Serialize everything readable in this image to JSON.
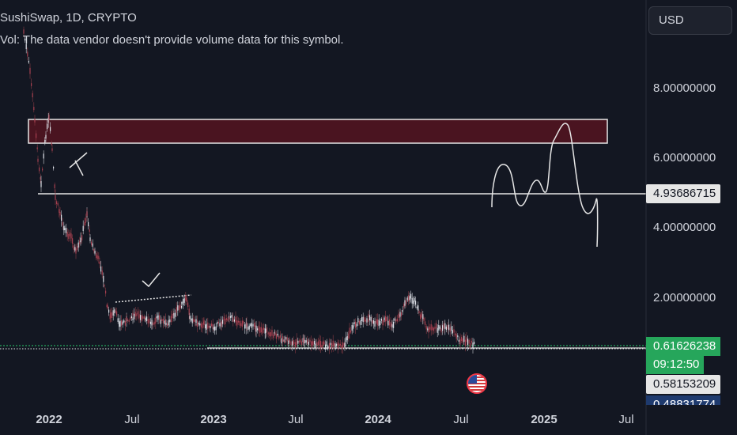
{
  "header": {
    "symbol_line": "SushiSwap, 1D, CRYPTO",
    "volume_note": "Vol: The data vendor doesn't provide volume data for this symbol."
  },
  "currency_button": "USD",
  "price_axis": {
    "labels": [
      "8.00000000",
      "6.00000000",
      "4.00000000",
      "2.00000000"
    ],
    "horizontal_line_tag": "4.93686715",
    "current_price_tag": "0.61626238",
    "countdown_tag": "09:12:50",
    "low_line_tag": "0.58153209",
    "bottom_tag_partial": "0.48831774"
  },
  "time_axis": {
    "labels": [
      "2022",
      "Jul",
      "2023",
      "Jul",
      "2024",
      "Jul",
      "2025",
      "Jul"
    ]
  },
  "flag_icon": "us-flag-icon",
  "colors": {
    "background": "#131722",
    "candle": "#d1d4dc",
    "zone_fill": "#4a1420",
    "current_price": "#26a65b"
  }
}
